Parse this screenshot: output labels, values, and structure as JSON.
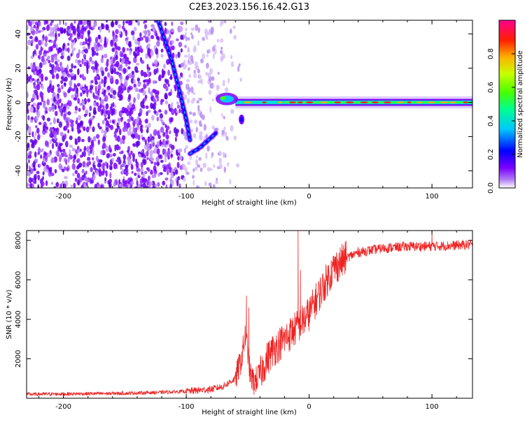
{
  "title": "C2E3.2023.156.16.42.G13",
  "chart_data": [
    {
      "type": "heatmap",
      "xlabel": "Height of straight line (km)",
      "ylabel": "Frequency (Hz)",
      "xlim": [
        -230,
        133
      ],
      "ylim": [
        -50,
        48
      ],
      "xticks": [
        -200,
        -100,
        0,
        100
      ],
      "yticks": [
        -40,
        -20,
        0,
        20,
        40
      ],
      "colorbar": {
        "label": "Normalized spectral amplitude",
        "range": [
          0,
          1
        ],
        "ticks": [
          "0.0",
          "0.2",
          "0.4",
          "0.6",
          "0.8"
        ],
        "colors": [
          "#ffffff",
          "#b07cf4",
          "#7a00ff",
          "#0000ff",
          "#00c8ff",
          "#00ff90",
          "#46ff00",
          "#c8ff00",
          "#ffb000",
          "#ff2000",
          "#ff0090"
        ]
      },
      "features": {
        "noise_region_x": [
          -230,
          -65
        ],
        "carrier_line": {
          "x_range": [
            -60,
            133
          ],
          "frequency": 0
        },
        "descending_trace": [
          [
            -123,
            48
          ],
          [
            -112,
            25
          ],
          [
            -105,
            5
          ],
          [
            -100,
            -10
          ],
          [
            -97,
            -22
          ]
        ],
        "ascending_trace": [
          [
            -97,
            -30
          ],
          [
            -90,
            -27
          ],
          [
            -82,
            -22
          ],
          [
            -76,
            -18
          ]
        ],
        "transition_blob": {
          "x": [
            -75,
            -55
          ],
          "frequency": [
            -15,
            5
          ]
        }
      }
    },
    {
      "type": "line",
      "xlabel": "Height of straight line (km)",
      "ylabel": "SNR (10 * v/v)",
      "xlim": [
        -230,
        133
      ],
      "ylim": [
        0,
        8500
      ],
      "xticks": [
        -200,
        -100,
        0,
        100
      ],
      "yticks": [
        2000,
        4000,
        6000,
        8000
      ],
      "series": [
        {
          "color": "#ee2222",
          "envelope_x": [
            -230,
            -150,
            -120,
            -100,
            -80,
            -70,
            -60,
            -55,
            -52,
            -50,
            -48,
            -45,
            -40,
            -35,
            -30,
            -25,
            -20,
            -15,
            -10,
            -5,
            0,
            10,
            20,
            30,
            40,
            50,
            60,
            80,
            100,
            120,
            133
          ],
          "envelope_y": [
            200,
            250,
            300,
            350,
            450,
            600,
            1000,
            2000,
            3200,
            2500,
            1200,
            800,
            1200,
            1900,
            2400,
            2700,
            3000,
            3300,
            3600,
            3900,
            4300,
            5500,
            6600,
            7100,
            7400,
            7500,
            7600,
            7700,
            7700,
            7750,
            7800
          ],
          "spikes": [
            [
              -51,
              5200
            ],
            [
              -49,
              4600
            ],
            [
              -9,
              8500
            ],
            [
              -7,
              6500
            ],
            [
              100,
              8400
            ],
            [
              101,
              7900
            ]
          ]
        }
      ]
    }
  ]
}
